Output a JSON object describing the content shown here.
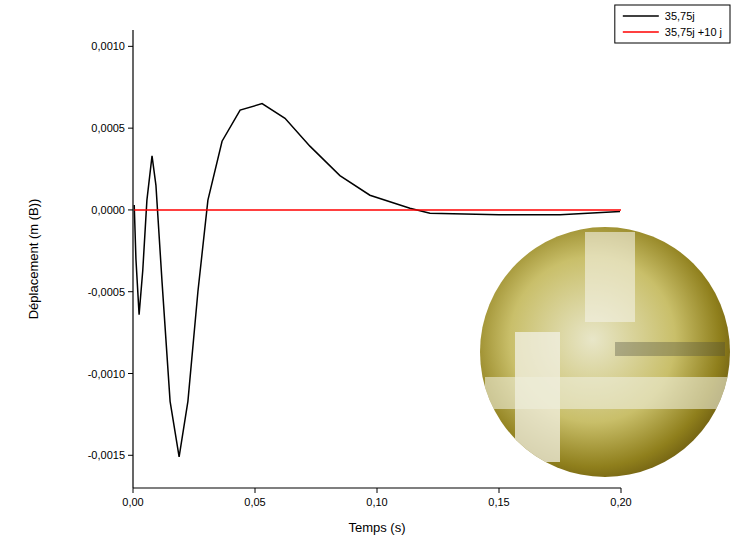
{
  "chart_data": {
    "type": "line",
    "x_label": "Temps (s)",
    "y_label": "Déplacement (m (B))",
    "xlim": [
      0,
      0.2
    ],
    "ylim": [
      -0.0017,
      0.0011
    ],
    "xticks": [
      {
        "value": 0,
        "label": "0,00"
      },
      {
        "value": 0.05,
        "label": "0,05"
      },
      {
        "value": 0.1,
        "label": "0,10"
      },
      {
        "value": 0.15,
        "label": "0,15"
      },
      {
        "value": 0.2,
        "label": "0,20"
      }
    ],
    "yticks": [
      {
        "value": -0.0015,
        "label": "-0,0015"
      },
      {
        "value": -0.001,
        "label": "-0,0010"
      },
      {
        "value": -0.0005,
        "label": "-0,0005"
      },
      {
        "value": 0,
        "label": "0,0000"
      },
      {
        "value": 0.0005,
        "label": "0,0005"
      },
      {
        "value": 0.001,
        "label": "0,0010"
      }
    ],
    "grid": false,
    "legend": "upper right",
    "series": [
      {
        "name": "35,75j",
        "color": "#000000",
        "x": [
          0.0005,
          0.0012,
          0.0025,
          0.004,
          0.0057,
          0.0078,
          0.0094,
          0.0119,
          0.0152,
          0.0189,
          0.0225,
          0.0266,
          0.0307,
          0.0365,
          0.0439,
          0.0529,
          0.0623,
          0.0725,
          0.0848,
          0.0971,
          0.1135,
          0.1217,
          0.15,
          0.175,
          0.1996
        ],
        "values": [
          3e-05,
          -0.0003,
          -0.00064,
          -0.00037,
          6e-05,
          0.00033,
          0.00015,
          -0.00044,
          -0.00117,
          -0.00151,
          -0.00117,
          -0.0005,
          6e-05,
          0.00042,
          0.00061,
          0.00065,
          0.00056,
          0.00039,
          0.00021,
          9e-05,
          1e-05,
          -2e-05,
          -3e-05,
          -3e-05,
          -1e-05
        ]
      },
      {
        "name": "35,75j +10 j",
        "color": "#ff0000",
        "x": [
          0.0005,
          0.05,
          0.1,
          0.15,
          0.2
        ],
        "values": [
          0,
          0,
          0,
          0,
          0
        ]
      }
    ]
  }
}
